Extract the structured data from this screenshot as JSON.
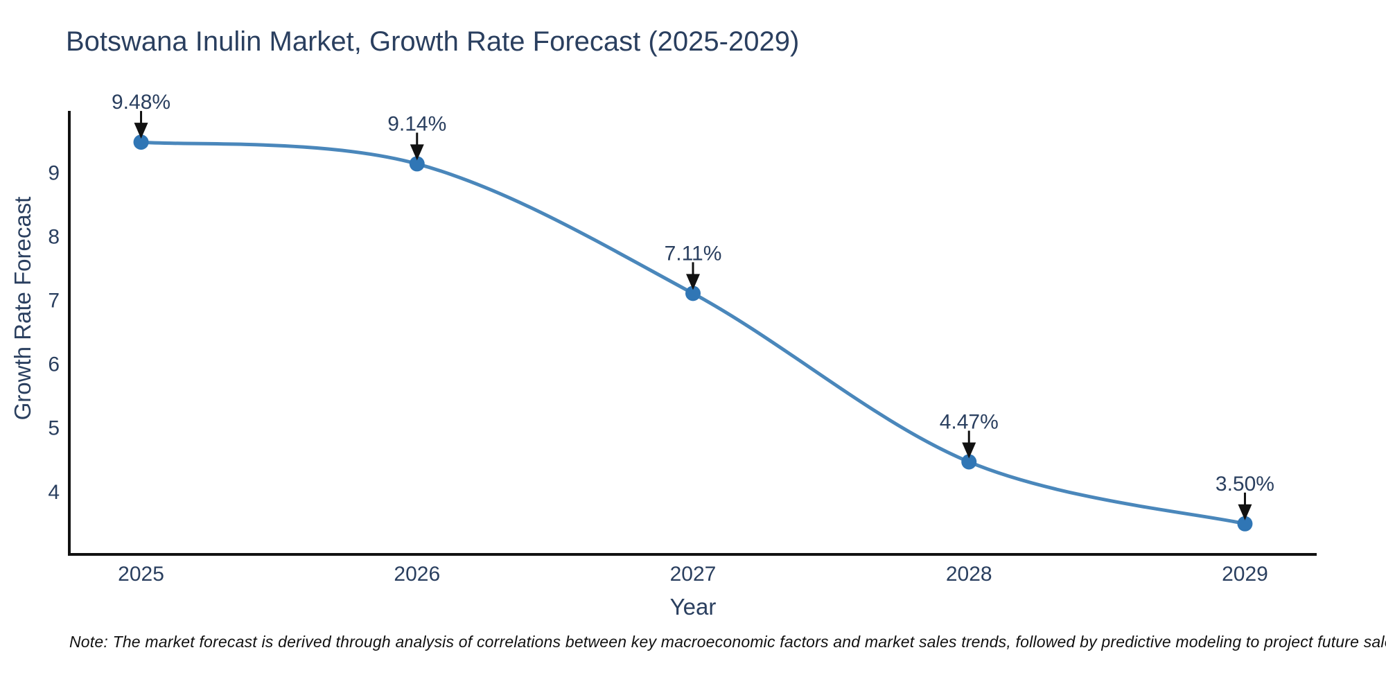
{
  "title": "Botswana Inulin Market, Growth Rate Forecast (2025-2029)",
  "note": "Note: The market forecast is derived through analysis of correlations between key macroeconomic factors and market sales trends, followed by predictive modeling to project future sales.",
  "colors": {
    "line": "#4a87bb",
    "marker": "#3076b5",
    "axis_line": "#111111",
    "arrow": "#111111",
    "text": "#2a3f5f",
    "note_text": "#111111",
    "background": "#ffffff"
  },
  "chart_data": {
    "type": "line",
    "line_shape": "spline",
    "title": "Botswana Inulin Market, Growth Rate Forecast (2025-2029)",
    "xlabel": "Year",
    "ylabel": "Growth Rate Forecast",
    "x": [
      2025,
      2026,
      2027,
      2028,
      2029
    ],
    "series": [
      {
        "name": "Growth Rate Forecast",
        "values": [
          9.48,
          9.14,
          7.11,
          4.47,
          3.5
        ]
      }
    ],
    "point_labels": [
      "9.48%",
      "9.14%",
      "7.11%",
      "4.47%",
      "3.50%"
    ],
    "yticks": [
      4,
      5,
      6,
      7,
      8,
      9
    ],
    "xticks": [
      2025,
      2026,
      2027,
      2028,
      2029
    ],
    "ylim": [
      3.02,
      9.97
    ],
    "xlim": [
      2024.74,
      2029.26
    ],
    "grid": false,
    "legend": false,
    "annotations_arrows": true
  }
}
